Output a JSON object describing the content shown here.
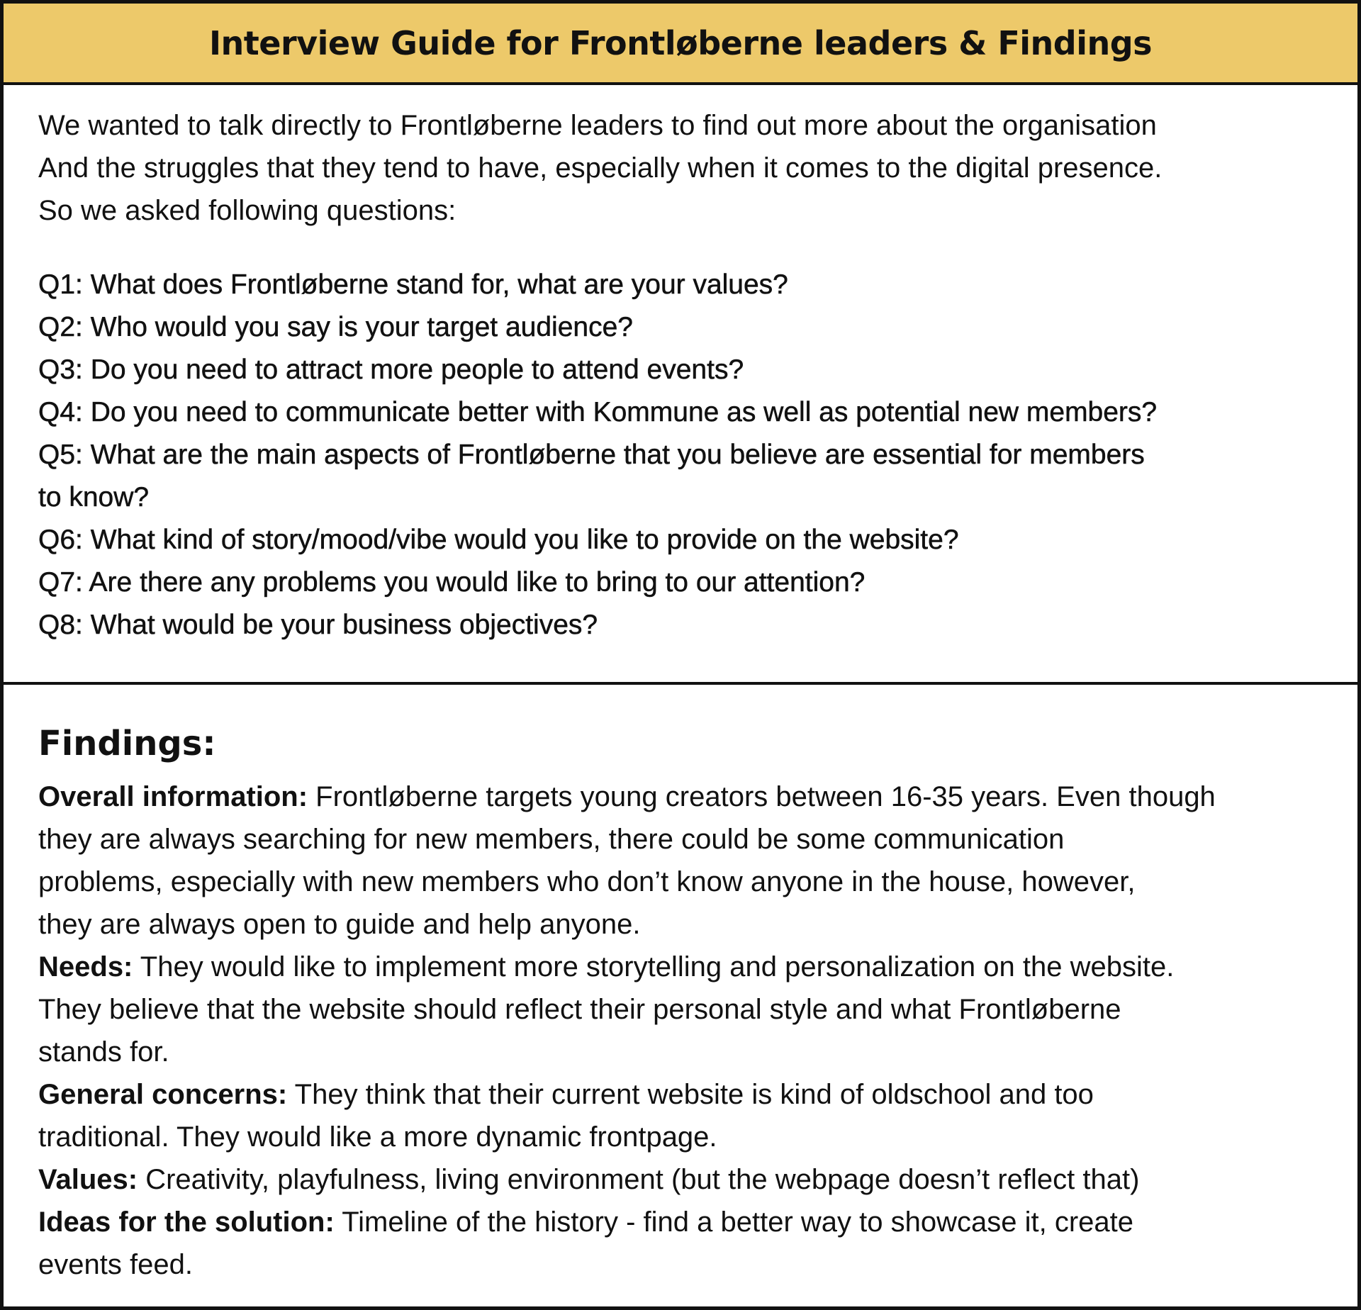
{
  "header": {
    "title": "Interview Guide for Frontløberne leaders & Findings"
  },
  "intro": {
    "lines": [
      "We wanted to talk directly to Frontløberne leaders to find out more about the organisation",
      "And the struggles that they tend to have, especially when it comes to the digital presence.",
      "So we asked following questions:"
    ]
  },
  "questions": [
    "Q1: What does Frontløberne stand for, what are your values?",
    "Q2: Who would you say is your target audience?",
    "Q3: Do you need to attract more people to attend events?",
    "Q4: Do you need to communicate better with Kommune as well as potential new members?",
    "Q5: What are the main aspects of Frontløberne that you believe are essential for members",
    "to know?",
    "Q6: What kind of story/mood/vibe would you like to provide on the website?",
    "Q7: Are there any problems you would like to bring to our attention?",
    "Q8: What would be your business objectives?"
  ],
  "findings": {
    "heading": "Findings:",
    "overall": {
      "label": "Overall information:",
      "lines": [
        " Frontløberne targets young creators between 16-35 years. Even though",
        "they are always searching for new members, there could be some communication",
        "problems, especially with new members who don’t know anyone in the house, however,",
        "they are always open to guide and help anyone."
      ]
    },
    "needs": {
      "label": "Needs:",
      "lines": [
        " They would like to implement more storytelling and personalization on the website.",
        "They believe that the website should reflect their personal style and what Frontløberne",
        "stands for."
      ]
    },
    "concerns": {
      "label": "General concerns:",
      "lines": [
        " They think that their current website is kind of oldschool and too",
        "traditional. They would like a more dynamic frontpage."
      ]
    },
    "values": {
      "label": "Values:",
      "lines": [
        " Creativity, playfulness, living environment (but the webpage doesn’t reflect that)"
      ]
    },
    "ideas": {
      "label": "Ideas for the solution:",
      "lines": [
        " Timeline of the history - find a better way to showcase it, create",
        "events feed."
      ]
    }
  }
}
